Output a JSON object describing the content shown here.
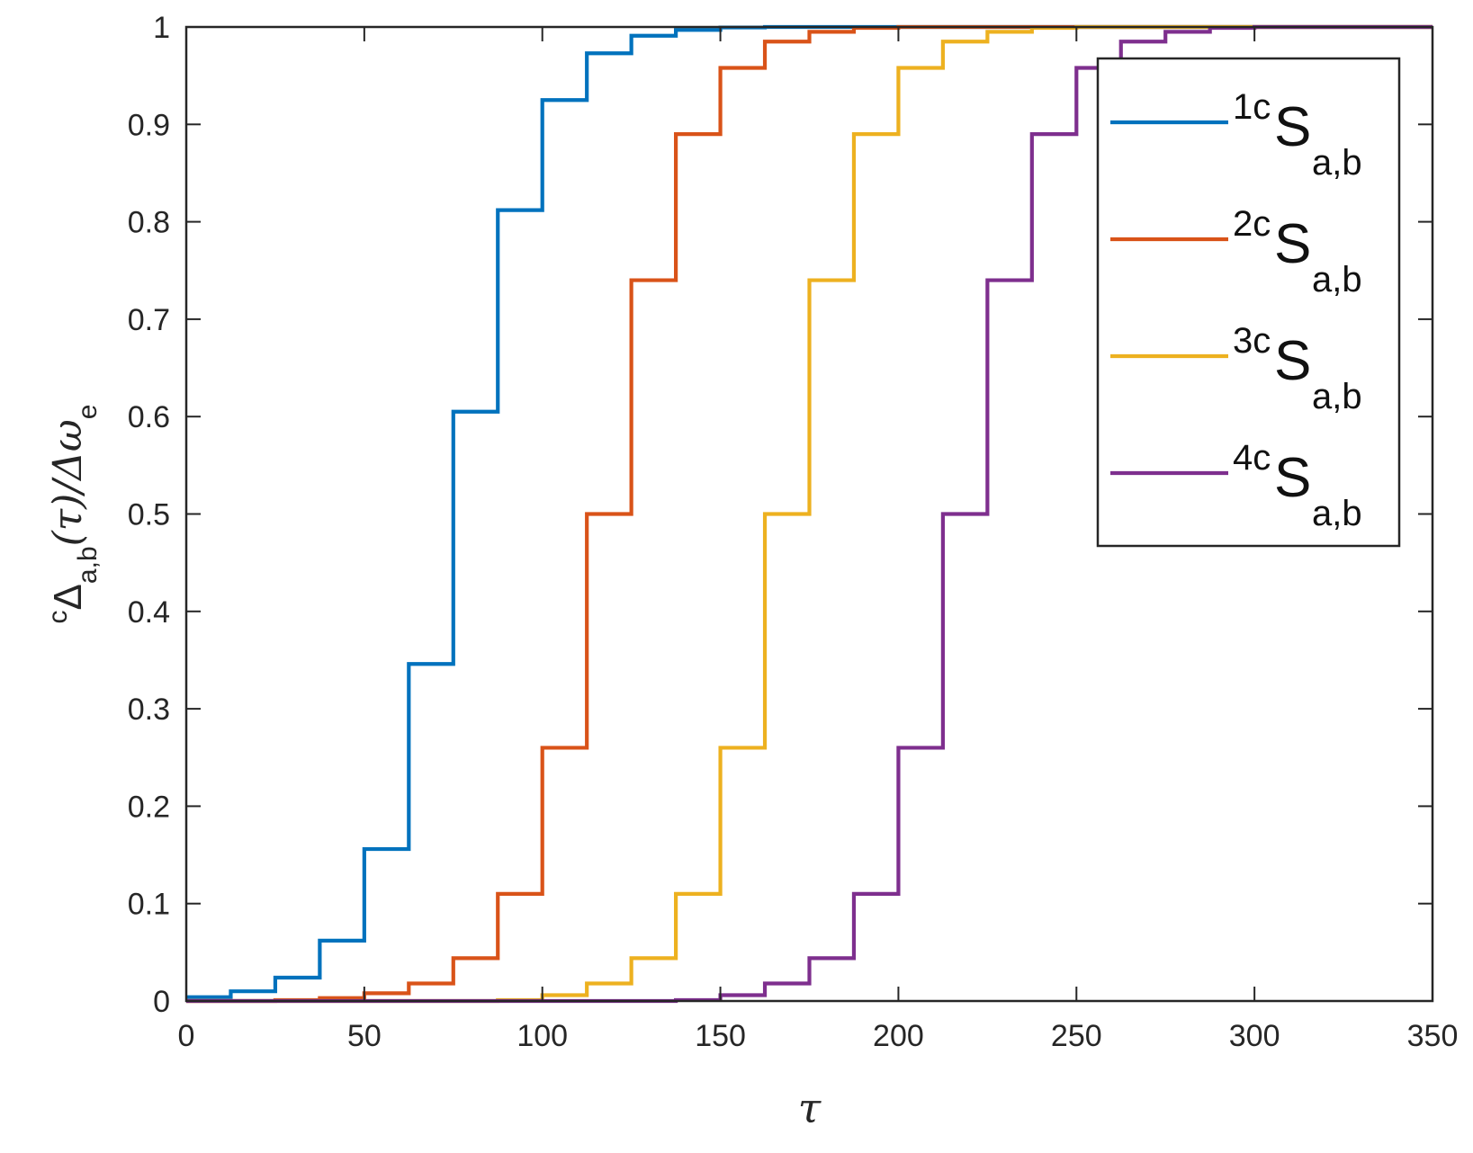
{
  "chart_data": {
    "type": "line",
    "xlabel": "τ",
    "ylabel": {
      "sup": "c",
      "main": "Δ",
      "sub": "a,b",
      "rest": "(τ)/Δω",
      "sub2": "e"
    },
    "xlim": [
      0,
      350
    ],
    "ylim": [
      0,
      1
    ],
    "xticks": [
      "0",
      "50",
      "100",
      "150",
      "200",
      "250",
      "300",
      "350"
    ],
    "yticks": [
      "0",
      "0.1",
      "0.2",
      "0.3",
      "0.4",
      "0.5",
      "0.6",
      "0.7",
      "0.8",
      "0.9",
      "1"
    ],
    "grid": false,
    "legend_position": "top-right",
    "step_width": 12.5,
    "series": [
      {
        "name": "1cSa,b",
        "label_sup": "1c",
        "label_main": "S",
        "label_sub": "a,b",
        "color": "#0072BD",
        "start": 0,
        "values": [
          0.004,
          0.01,
          0.024,
          0.062,
          0.156,
          0.346,
          0.605,
          0.812,
          0.925,
          0.973,
          0.991,
          0.997,
          0.9995,
          1.0
        ]
      },
      {
        "name": "2cSa,b",
        "label_sup": "2c",
        "label_main": "S",
        "label_sub": "a,b",
        "color": "#D95319",
        "start": 0,
        "values": [
          0.0,
          0.0,
          0.001,
          0.003,
          0.008,
          0.018,
          0.044,
          0.11,
          0.26,
          0.5,
          0.74,
          0.89,
          0.958,
          0.985,
          0.995,
          0.999,
          1.0
        ]
      },
      {
        "name": "3cSa,b",
        "label_sup": "3c",
        "label_main": "S",
        "label_sub": "a,b",
        "color": "#EDB120",
        "start": 0,
        "values": [
          0.0,
          0.0,
          0.0,
          0.0,
          0.0,
          0.0,
          0.0,
          0.001,
          0.006,
          0.018,
          0.044,
          0.11,
          0.26,
          0.5,
          0.74,
          0.89,
          0.958,
          0.985,
          0.995,
          0.999,
          1.0
        ]
      },
      {
        "name": "4cSa,b",
        "label_sup": "4c",
        "label_main": "S",
        "label_sub": "a,b",
        "color": "#7E2F8E",
        "start": 0,
        "values": [
          0.0,
          0.0,
          0.0,
          0.0,
          0.0,
          0.0,
          0.0,
          0.0,
          0.0,
          0.0,
          0.0,
          0.001,
          0.006,
          0.018,
          0.044,
          0.11,
          0.26,
          0.5,
          0.74,
          0.89,
          0.958,
          0.985,
          0.995,
          0.999,
          1.0
        ]
      }
    ]
  }
}
